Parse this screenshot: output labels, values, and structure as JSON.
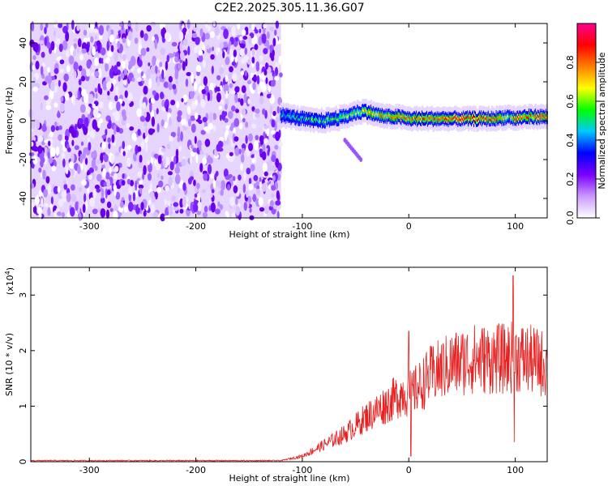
{
  "title": "C2E2.2025.305.11.36.G07",
  "chart_data": [
    {
      "type": "heatmap",
      "xlabel": "Height of straight line (km)",
      "ylabel": "Frequency (Hz)",
      "xlim": [
        -355,
        130
      ],
      "ylim": [
        -50,
        50
      ],
      "xticks": [
        -300,
        -200,
        -100,
        0,
        100
      ],
      "yticks": [
        -40,
        -20,
        0,
        20,
        40
      ],
      "colorbar": {
        "label": "Normalized spectral amplitude",
        "range": [
          0,
          1
        ],
        "ticks": [
          "0.0",
          "0.2",
          "0.4",
          "0.6",
          "0.8"
        ],
        "colormap": [
          "#ffffff",
          "#cc99ff",
          "#7a00ff",
          "#0000ff",
          "#00c8ff",
          "#00ff00",
          "#ffff00",
          "#ff8000",
          "#ff0000",
          "#ff0090"
        ]
      },
      "noise_region_x": [
        -355,
        -120
      ],
      "ridge": {
        "x": [
          -120,
          -110,
          -100,
          -90,
          -80,
          -70,
          -60,
          -50,
          -40,
          -30,
          -20,
          -10,
          0,
          20,
          40,
          60,
          80,
          95,
          100,
          110,
          130
        ],
        "y": [
          3,
          2,
          1,
          0,
          0,
          1,
          2,
          4,
          5,
          3,
          2,
          2,
          1,
          1,
          1,
          1,
          1,
          2,
          1,
          2,
          2
        ],
        "amplitude": [
          0.45,
          0.5,
          0.5,
          0.55,
          0.55,
          0.6,
          0.6,
          0.65,
          0.7,
          0.75,
          0.75,
          0.8,
          0.8,
          0.8,
          0.85,
          0.85,
          0.85,
          0.6,
          0.8,
          0.8,
          0.8
        ]
      },
      "side_branch": {
        "x": [
          -60,
          -45
        ],
        "y": [
          -10,
          -20
        ]
      }
    },
    {
      "type": "line",
      "xlabel": "Height of straight line (km)",
      "ylabel": "SNR (10 * v/v)",
      "ymultiplier": "(x10",
      "ymultiplier_exp": "4",
      "ymultiplier_close": ")",
      "xlim": [
        -355,
        130
      ],
      "ylim": [
        0,
        3.5
      ],
      "xticks": [
        -300,
        -200,
        -100,
        0,
        100
      ],
      "yticks": [
        0,
        1,
        2,
        3
      ],
      "series_color": "#e82020",
      "envelope": {
        "x": [
          -355,
          -120,
          -100,
          -80,
          -60,
          -40,
          -20,
          -5,
          0,
          10,
          20,
          40,
          60,
          80,
          90,
          100,
          110,
          130
        ],
        "y": [
          0.02,
          0.02,
          0.1,
          0.3,
          0.5,
          0.8,
          1.05,
          1.25,
          1.2,
          1.35,
          1.55,
          1.75,
          1.85,
          1.85,
          1.85,
          1.9,
          1.85,
          1.75
        ]
      },
      "spikes": [
        {
          "x": 0,
          "y": 2.35
        },
        {
          "x": 2,
          "y": 0.1
        },
        {
          "x": 98,
          "y": 3.35
        },
        {
          "x": 99,
          "y": 0.35
        }
      ]
    }
  ]
}
